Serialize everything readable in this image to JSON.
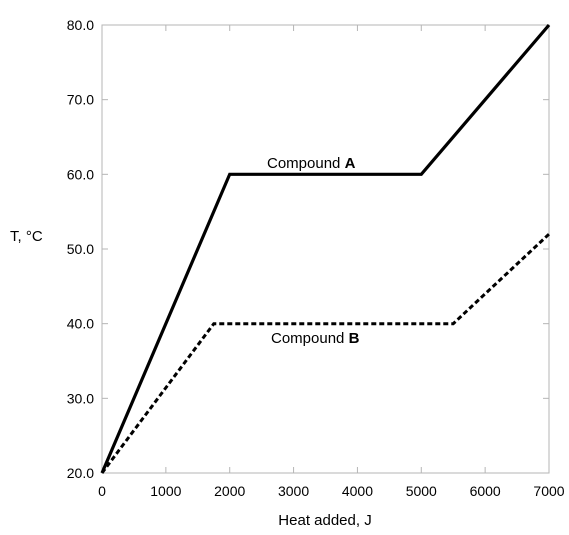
{
  "chart_data": {
    "type": "line",
    "xlabel": "Heat added, J",
    "ylabel": "T, °C",
    "xlim": [
      0,
      7000
    ],
    "ylim": [
      20,
      80
    ],
    "x_ticks": [
      0,
      1000,
      2000,
      3000,
      4000,
      5000,
      6000,
      7000
    ],
    "y_ticks": [
      20,
      30,
      40,
      50,
      60,
      70,
      80
    ],
    "x_tick_labels": [
      "0",
      "1000",
      "2000",
      "3000",
      "4000",
      "5000",
      "6000",
      "7000"
    ],
    "y_tick_labels": [
      "20.0",
      "30.0",
      "40.0",
      "50.0",
      "60.0",
      "70.0",
      "80.0"
    ],
    "grid": false,
    "series": [
      {
        "name": "Compound A",
        "label_prefix": "Compound ",
        "label_bold": "A",
        "style": "solid",
        "points": [
          {
            "x": 0,
            "y": 20
          },
          {
            "x": 2000,
            "y": 60
          },
          {
            "x": 5000,
            "y": 60
          },
          {
            "x": 7000,
            "y": 80
          }
        ]
      },
      {
        "name": "Compound B",
        "label_prefix": "Compound ",
        "label_bold": "B",
        "style": "dashed",
        "points": [
          {
            "x": 0,
            "y": 20
          },
          {
            "x": 1750,
            "y": 40
          },
          {
            "x": 5500,
            "y": 40
          },
          {
            "x": 7000,
            "y": 52
          }
        ]
      }
    ]
  }
}
